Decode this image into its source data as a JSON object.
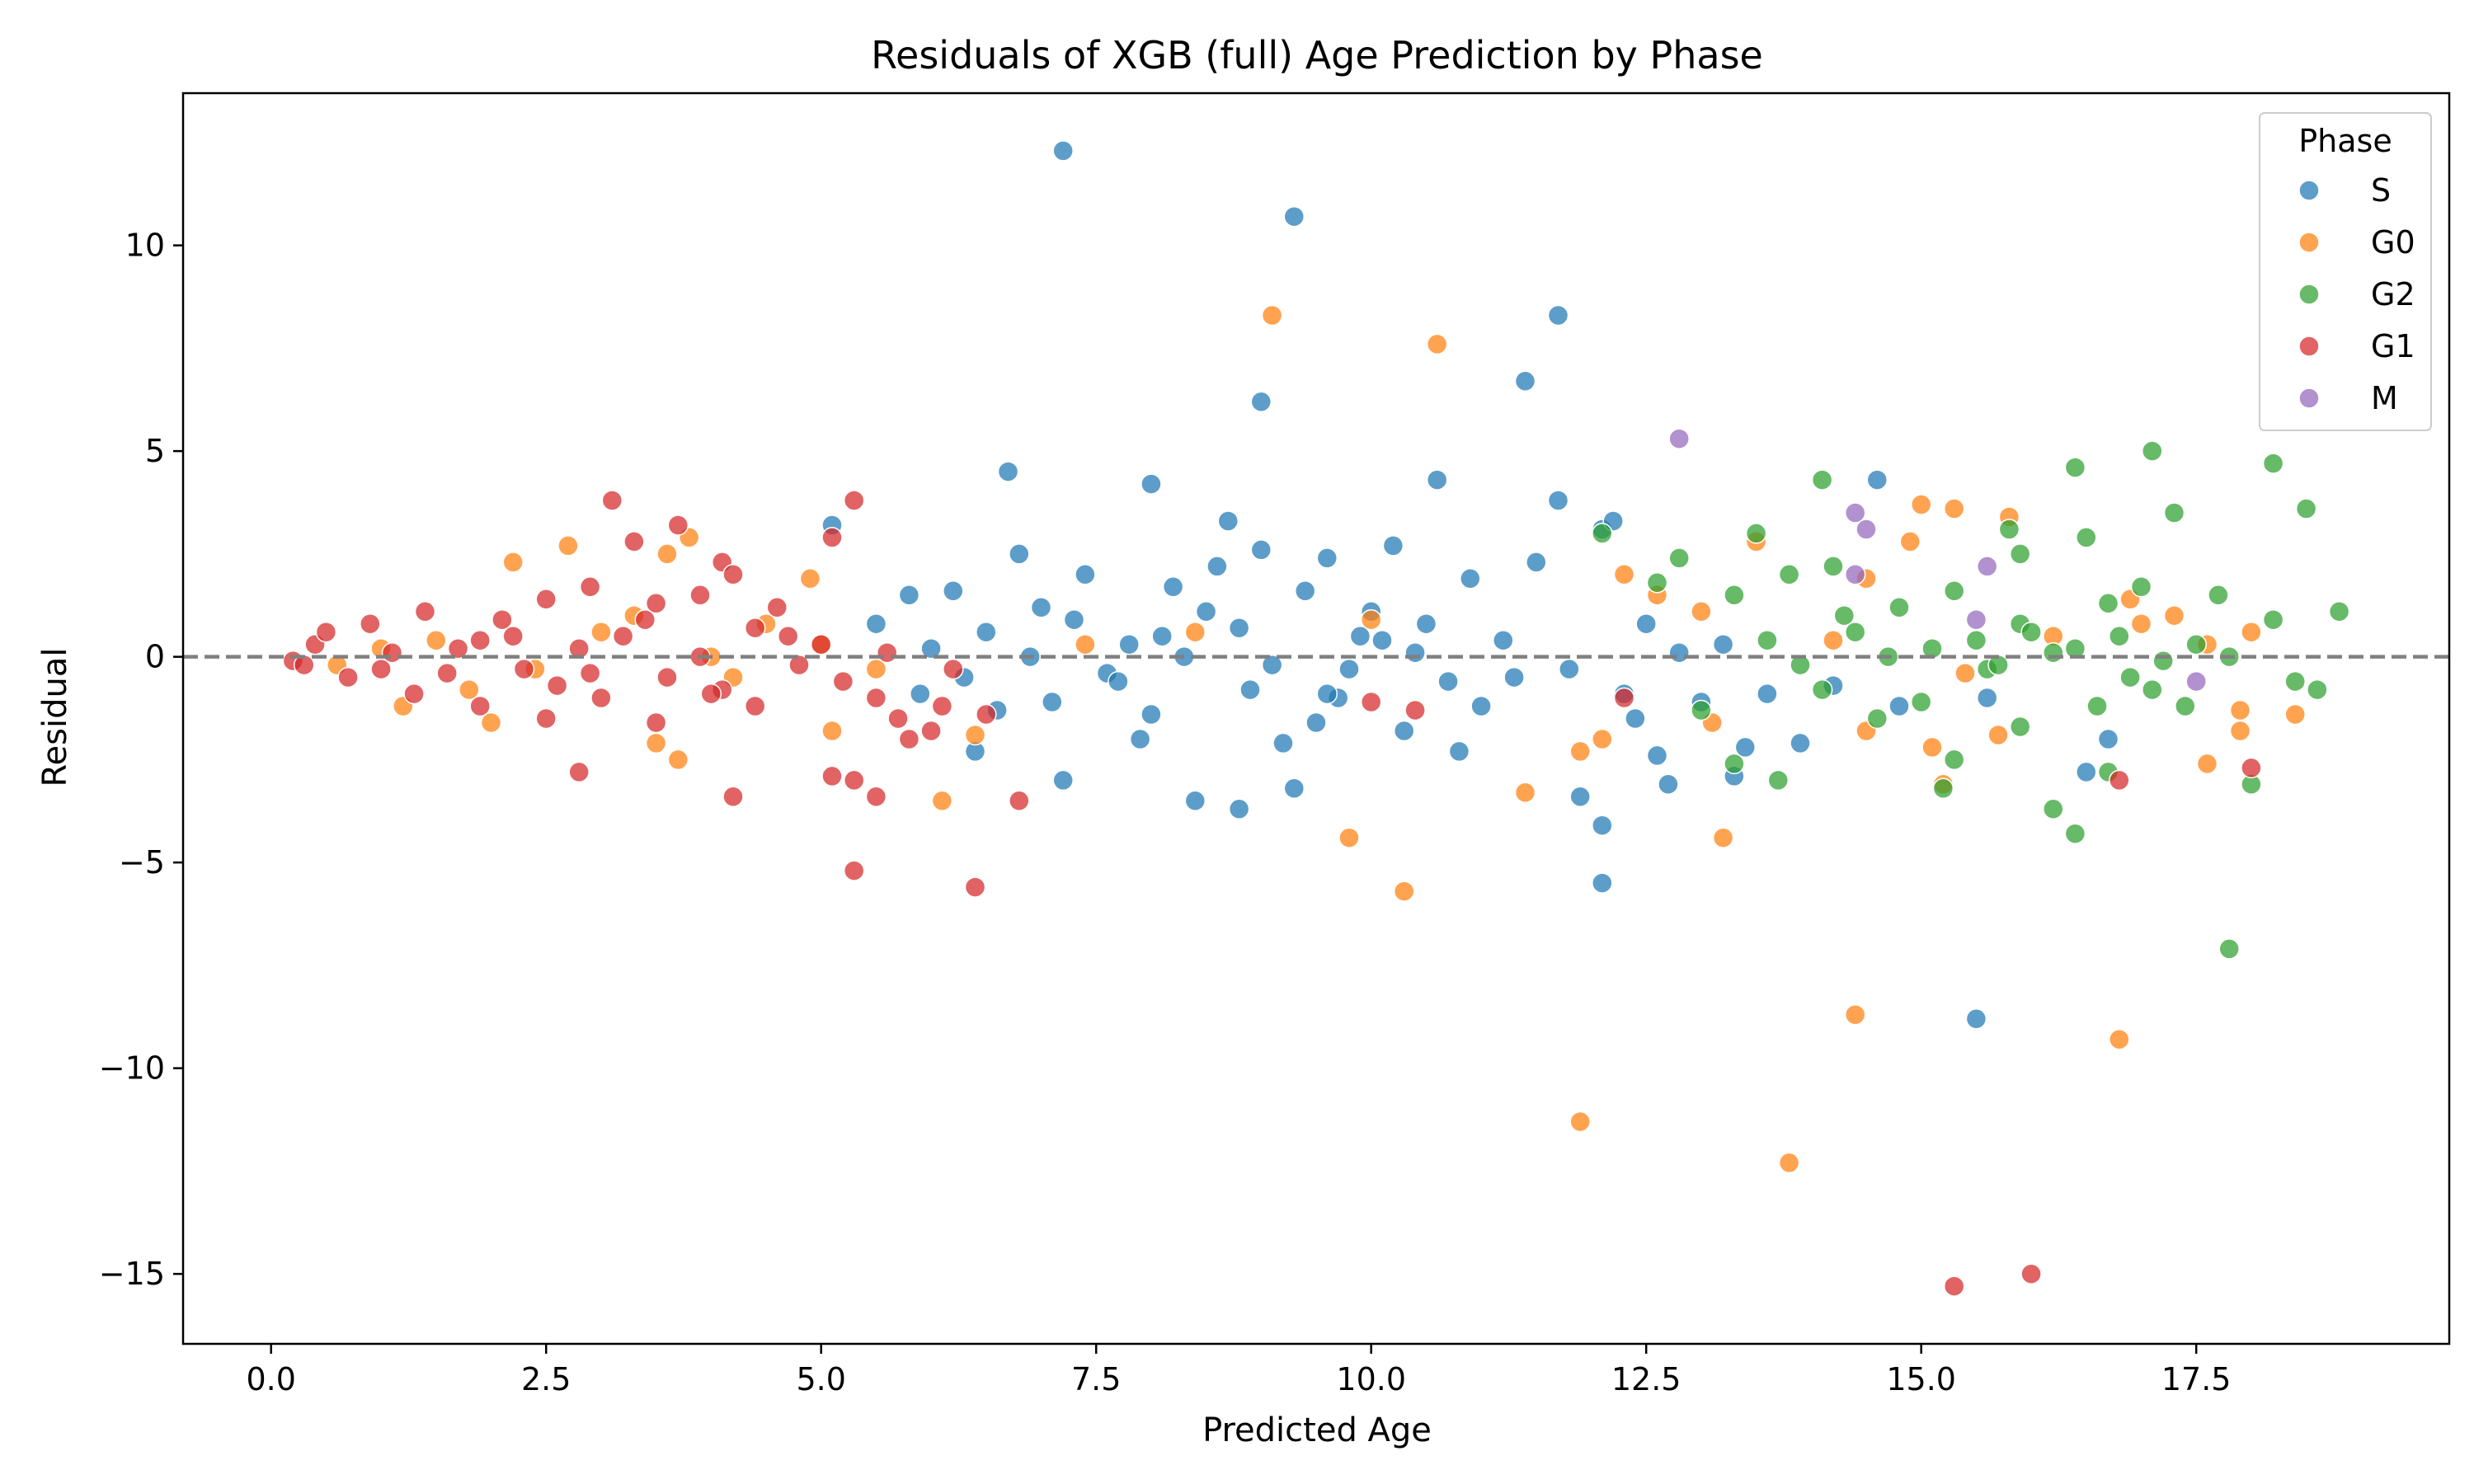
{
  "chart_data": {
    "type": "scatter",
    "title": "Residuals of XGB (full) Age Prediction by Phase",
    "xlabel": "Predicted Age",
    "ylabel": "Residual",
    "xlim": [
      -0.8,
      19.8
    ],
    "ylim": [
      -16.7,
      13.7
    ],
    "xticks": [
      0.0,
      2.5,
      5.0,
      7.5,
      10.0,
      12.5,
      15.0,
      17.5
    ],
    "xtick_labels": [
      "0.0",
      "2.5",
      "5.0",
      "7.5",
      "10.0",
      "12.5",
      "15.0",
      "17.5"
    ],
    "yticks": [
      -15,
      -10,
      -5,
      0,
      5,
      10
    ],
    "ytick_labels": [
      "−15",
      "−10",
      "−5",
      "0",
      "5",
      "10"
    ],
    "reference_line": {
      "y": 0,
      "style": "dashed",
      "color": "#808080"
    },
    "grid": false,
    "legend": {
      "title": "Phase",
      "position": "top-right"
    },
    "series": [
      {
        "name": "S",
        "color": "#1f77b4",
        "points": [
          [
            7.2,
            12.3
          ],
          [
            9.3,
            10.7
          ],
          [
            11.7,
            8.3
          ],
          [
            11.4,
            6.7
          ],
          [
            9.0,
            6.2
          ],
          [
            6.7,
            4.5
          ],
          [
            8.0,
            4.2
          ],
          [
            10.6,
            4.3
          ],
          [
            14.6,
            4.3
          ],
          [
            11.7,
            3.8
          ],
          [
            8.7,
            3.3
          ],
          [
            5.1,
            3.2
          ],
          [
            12.1,
            3.1
          ],
          [
            12.2,
            3.3
          ],
          [
            9.0,
            2.6
          ],
          [
            6.8,
            2.5
          ],
          [
            9.6,
            2.4
          ],
          [
            10.2,
            2.7
          ],
          [
            8.6,
            2.2
          ],
          [
            11.5,
            2.3
          ],
          [
            7.4,
            2.0
          ],
          [
            10.9,
            1.9
          ],
          [
            9.4,
            1.6
          ],
          [
            6.2,
            1.6
          ],
          [
            5.8,
            1.5
          ],
          [
            7.0,
            1.2
          ],
          [
            8.2,
            1.7
          ],
          [
            10.0,
            1.1
          ],
          [
            12.5,
            0.8
          ],
          [
            6.5,
            0.6
          ],
          [
            8.8,
            0.7
          ],
          [
            9.9,
            0.5
          ],
          [
            11.2,
            0.4
          ],
          [
            7.8,
            0.3
          ],
          [
            6.0,
            0.2
          ],
          [
            10.4,
            0.1
          ],
          [
            8.3,
            0.0
          ],
          [
            9.1,
            -0.2
          ],
          [
            11.8,
            -0.3
          ],
          [
            7.6,
            -0.4
          ],
          [
            6.3,
            -0.5
          ],
          [
            10.7,
            -0.6
          ],
          [
            8.9,
            -0.8
          ],
          [
            12.3,
            -0.9
          ],
          [
            9.7,
            -1.0
          ],
          [
            7.1,
            -1.1
          ],
          [
            11.0,
            -1.2
          ],
          [
            8.0,
            -1.4
          ],
          [
            9.5,
            -1.6
          ],
          [
            10.3,
            -1.8
          ],
          [
            12.4,
            -1.5
          ],
          [
            13.0,
            -1.1
          ],
          [
            13.6,
            -0.9
          ],
          [
            14.2,
            -0.7
          ],
          [
            7.9,
            -2.0
          ],
          [
            9.2,
            -2.1
          ],
          [
            10.8,
            -2.3
          ],
          [
            6.4,
            -2.3
          ],
          [
            12.6,
            -2.4
          ],
          [
            13.4,
            -2.2
          ],
          [
            11.9,
            -3.4
          ],
          [
            8.4,
            -3.5
          ],
          [
            8.8,
            -3.7
          ],
          [
            9.3,
            -3.2
          ],
          [
            7.2,
            -3.0
          ],
          [
            12.1,
            -4.1
          ],
          [
            12.1,
            -5.5
          ],
          [
            15.5,
            -8.8
          ],
          [
            15.6,
            -1.0
          ],
          [
            14.8,
            -1.2
          ],
          [
            16.5,
            -2.8
          ],
          [
            16.7,
            -2.0
          ],
          [
            13.9,
            -2.1
          ],
          [
            12.7,
            -3.1
          ],
          [
            13.3,
            -2.9
          ],
          [
            5.5,
            0.8
          ],
          [
            5.9,
            -0.9
          ],
          [
            6.6,
            -1.3
          ],
          [
            7.3,
            0.9
          ],
          [
            8.5,
            1.1
          ],
          [
            9.8,
            -0.3
          ],
          [
            10.5,
            0.8
          ],
          [
            11.3,
            -0.5
          ],
          [
            12.8,
            0.1
          ],
          [
            13.2,
            0.3
          ],
          [
            6.9,
            0.0
          ],
          [
            7.7,
            -0.6
          ],
          [
            8.1,
            0.5
          ],
          [
            9.6,
            -0.9
          ],
          [
            10.1,
            0.4
          ]
        ]
      },
      {
        "name": "G0",
        "color": "#ff7f0e",
        "points": [
          [
            9.1,
            8.3
          ],
          [
            10.6,
            7.6
          ],
          [
            15.3,
            3.6
          ],
          [
            15.0,
            3.7
          ],
          [
            15.8,
            3.4
          ],
          [
            14.9,
            2.8
          ],
          [
            2.2,
            2.3
          ],
          [
            2.7,
            2.7
          ],
          [
            3.8,
            2.9
          ],
          [
            3.6,
            2.5
          ],
          [
            4.9,
            1.9
          ],
          [
            12.3,
            2.0
          ],
          [
            14.5,
            1.9
          ],
          [
            16.9,
            1.4
          ],
          [
            17.3,
            1.0
          ],
          [
            13.5,
            2.8
          ],
          [
            10.0,
            0.9
          ],
          [
            8.4,
            0.6
          ],
          [
            7.4,
            0.3
          ],
          [
            1.2,
            -1.2
          ],
          [
            2.0,
            -1.6
          ],
          [
            3.5,
            -2.1
          ],
          [
            3.7,
            -2.5
          ],
          [
            6.1,
            -3.5
          ],
          [
            6.4,
            -1.9
          ],
          [
            5.1,
            -1.8
          ],
          [
            11.9,
            -2.3
          ],
          [
            12.1,
            -2.0
          ],
          [
            13.1,
            -1.6
          ],
          [
            14.5,
            -1.8
          ],
          [
            15.7,
            -1.9
          ],
          [
            15.1,
            -2.2
          ],
          [
            15.2,
            -3.1
          ],
          [
            17.6,
            -2.6
          ],
          [
            17.9,
            -1.8
          ],
          [
            18.4,
            -1.4
          ],
          [
            17.9,
            -1.3
          ],
          [
            11.4,
            -3.3
          ],
          [
            13.2,
            -4.4
          ],
          [
            9.8,
            -4.4
          ],
          [
            10.3,
            -5.7
          ],
          [
            14.4,
            -8.7
          ],
          [
            16.8,
            -9.3
          ],
          [
            11.9,
            -11.3
          ],
          [
            13.8,
            -12.3
          ],
          [
            1.0,
            0.2
          ],
          [
            1.5,
            0.4
          ],
          [
            2.4,
            -0.3
          ],
          [
            3.0,
            0.6
          ],
          [
            4.2,
            -0.5
          ],
          [
            4.5,
            0.8
          ],
          [
            5.5,
            -0.3
          ],
          [
            0.6,
            -0.2
          ],
          [
            1.8,
            -0.8
          ],
          [
            3.3,
            1.0
          ],
          [
            4.0,
            0.0
          ],
          [
            5.0,
            0.3
          ],
          [
            16.2,
            0.5
          ],
          [
            17.0,
            0.8
          ],
          [
            18.0,
            0.6
          ],
          [
            17.6,
            0.3
          ],
          [
            15.4,
            -0.4
          ],
          [
            14.2,
            0.4
          ],
          [
            13.0,
            1.1
          ],
          [
            12.6,
            1.5
          ]
        ]
      },
      {
        "name": "G2",
        "color": "#2ca02c",
        "points": [
          [
            17.1,
            5.0
          ],
          [
            18.2,
            4.7
          ],
          [
            16.4,
            4.6
          ],
          [
            14.1,
            4.3
          ],
          [
            18.5,
            3.6
          ],
          [
            17.3,
            3.5
          ],
          [
            15.8,
            3.1
          ],
          [
            16.5,
            2.9
          ],
          [
            13.5,
            3.0
          ],
          [
            12.1,
            3.0
          ],
          [
            12.8,
            2.4
          ],
          [
            13.8,
            2.0
          ],
          [
            15.9,
            2.5
          ],
          [
            14.2,
            2.2
          ],
          [
            12.6,
            1.8
          ],
          [
            13.3,
            1.5
          ],
          [
            14.8,
            1.2
          ],
          [
            15.3,
            1.6
          ],
          [
            17.0,
            1.7
          ],
          [
            17.7,
            1.5
          ],
          [
            18.8,
            1.1
          ],
          [
            18.2,
            0.9
          ],
          [
            16.7,
            1.3
          ],
          [
            15.9,
            0.8
          ],
          [
            14.4,
            0.6
          ],
          [
            13.6,
            0.4
          ],
          [
            15.1,
            0.2
          ],
          [
            16.2,
            0.1
          ],
          [
            17.5,
            0.3
          ],
          [
            14.7,
            0.0
          ],
          [
            13.9,
            -0.2
          ],
          [
            15.6,
            -0.3
          ],
          [
            16.9,
            -0.5
          ],
          [
            18.4,
            -0.6
          ],
          [
            18.6,
            -0.8
          ],
          [
            17.1,
            -0.8
          ],
          [
            16.6,
            -1.2
          ],
          [
            17.4,
            -1.2
          ],
          [
            15.0,
            -1.1
          ],
          [
            14.1,
            -0.8
          ],
          [
            13.0,
            -1.3
          ],
          [
            14.6,
            -1.5
          ],
          [
            15.9,
            -1.7
          ],
          [
            13.3,
            -2.6
          ],
          [
            13.7,
            -3.0
          ],
          [
            15.3,
            -2.5
          ],
          [
            15.2,
            -3.2
          ],
          [
            16.7,
            -2.8
          ],
          [
            18.0,
            -3.1
          ],
          [
            16.2,
            -3.7
          ],
          [
            16.4,
            -4.3
          ],
          [
            17.8,
            -7.1
          ],
          [
            16.0,
            0.6
          ],
          [
            16.4,
            0.2
          ],
          [
            17.2,
            -0.1
          ],
          [
            15.5,
            0.4
          ],
          [
            14.3,
            1.0
          ],
          [
            16.8,
            0.5
          ],
          [
            17.8,
            0.0
          ],
          [
            15.7,
            -0.2
          ]
        ]
      },
      {
        "name": "G1",
        "color": "#d62728",
        "points": [
          [
            3.1,
            3.8
          ],
          [
            5.3,
            3.8
          ],
          [
            3.7,
            3.2
          ],
          [
            5.1,
            2.9
          ],
          [
            3.3,
            2.8
          ],
          [
            4.1,
            2.3
          ],
          [
            4.2,
            2.0
          ],
          [
            3.9,
            1.5
          ],
          [
            2.9,
            1.7
          ],
          [
            3.5,
            1.3
          ],
          [
            2.5,
            1.4
          ],
          [
            4.6,
            1.2
          ],
          [
            1.4,
            1.1
          ],
          [
            2.1,
            0.9
          ],
          [
            0.9,
            0.8
          ],
          [
            4.4,
            0.7
          ],
          [
            3.2,
            0.5
          ],
          [
            1.9,
            0.4
          ],
          [
            5.0,
            0.3
          ],
          [
            0.4,
            0.3
          ],
          [
            2.8,
            0.2
          ],
          [
            1.1,
            0.1
          ],
          [
            3.9,
            0.0
          ],
          [
            0.2,
            -0.1
          ],
          [
            4.8,
            -0.2
          ],
          [
            2.3,
            -0.3
          ],
          [
            1.6,
            -0.4
          ],
          [
            3.6,
            -0.5
          ],
          [
            0.7,
            -0.5
          ],
          [
            5.2,
            -0.6
          ],
          [
            2.6,
            -0.7
          ],
          [
            4.1,
            -0.8
          ],
          [
            1.3,
            -0.9
          ],
          [
            3.0,
            -1.0
          ],
          [
            5.5,
            -1.0
          ],
          [
            1.9,
            -1.2
          ],
          [
            4.4,
            -1.2
          ],
          [
            2.5,
            -1.5
          ],
          [
            3.5,
            -1.6
          ],
          [
            5.7,
            -1.5
          ],
          [
            6.1,
            -1.2
          ],
          [
            6.5,
            -1.4
          ],
          [
            6.0,
            -1.8
          ],
          [
            2.8,
            -2.8
          ],
          [
            4.2,
            -3.4
          ],
          [
            5.1,
            -2.9
          ],
          [
            5.3,
            -3.0
          ],
          [
            5.5,
            -3.4
          ],
          [
            5.8,
            -2.0
          ],
          [
            6.8,
            -3.5
          ],
          [
            5.3,
            -5.2
          ],
          [
            6.4,
            -5.6
          ],
          [
            10.0,
            -1.1
          ],
          [
            10.4,
            -1.3
          ],
          [
            12.3,
            -1.0
          ],
          [
            15.3,
            -15.3
          ],
          [
            16.0,
            -15.0
          ],
          [
            16.8,
            -3.0
          ],
          [
            18.0,
            -2.7
          ],
          [
            0.5,
            0.6
          ],
          [
            1.0,
            -0.3
          ],
          [
            1.7,
            0.2
          ],
          [
            2.2,
            0.5
          ],
          [
            2.9,
            -0.4
          ],
          [
            3.4,
            0.9
          ],
          [
            4.0,
            -0.9
          ],
          [
            4.7,
            0.5
          ],
          [
            5.6,
            0.1
          ],
          [
            6.2,
            -0.3
          ],
          [
            0.3,
            -0.2
          ]
        ]
      },
      {
        "name": "M",
        "color": "#9467bd",
        "points": [
          [
            12.8,
            5.3
          ],
          [
            14.4,
            3.5
          ],
          [
            14.5,
            3.1
          ],
          [
            15.6,
            2.2
          ],
          [
            14.4,
            2.0
          ],
          [
            15.5,
            0.9
          ],
          [
            17.5,
            -0.6
          ]
        ]
      }
    ]
  }
}
